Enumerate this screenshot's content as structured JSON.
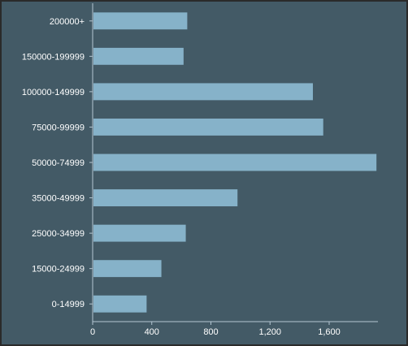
{
  "chart_data": {
    "type": "bar",
    "orientation": "horizontal",
    "title": "",
    "xlabel": "",
    "ylabel": "",
    "categories": [
      "0-14999",
      "15000-24999",
      "25000-34999",
      "35000-49999",
      "50000-74999",
      "75000-99999",
      "100000-149999",
      "150000-199999",
      "200000+"
    ],
    "values": [
      365,
      465,
      630,
      980,
      1920,
      1560,
      1490,
      615,
      640
    ],
    "xlim": [
      0,
      1930
    ],
    "xticks": [
      0,
      400,
      800,
      1200,
      1600
    ],
    "xtick_labels": [
      "0",
      "400",
      "800",
      "1,200",
      "1,600"
    ],
    "grid": false,
    "colors": {
      "background": "#435a66",
      "bar": "#86b2c9",
      "axis": "#b4c7d3",
      "text": "#ffffff"
    }
  }
}
